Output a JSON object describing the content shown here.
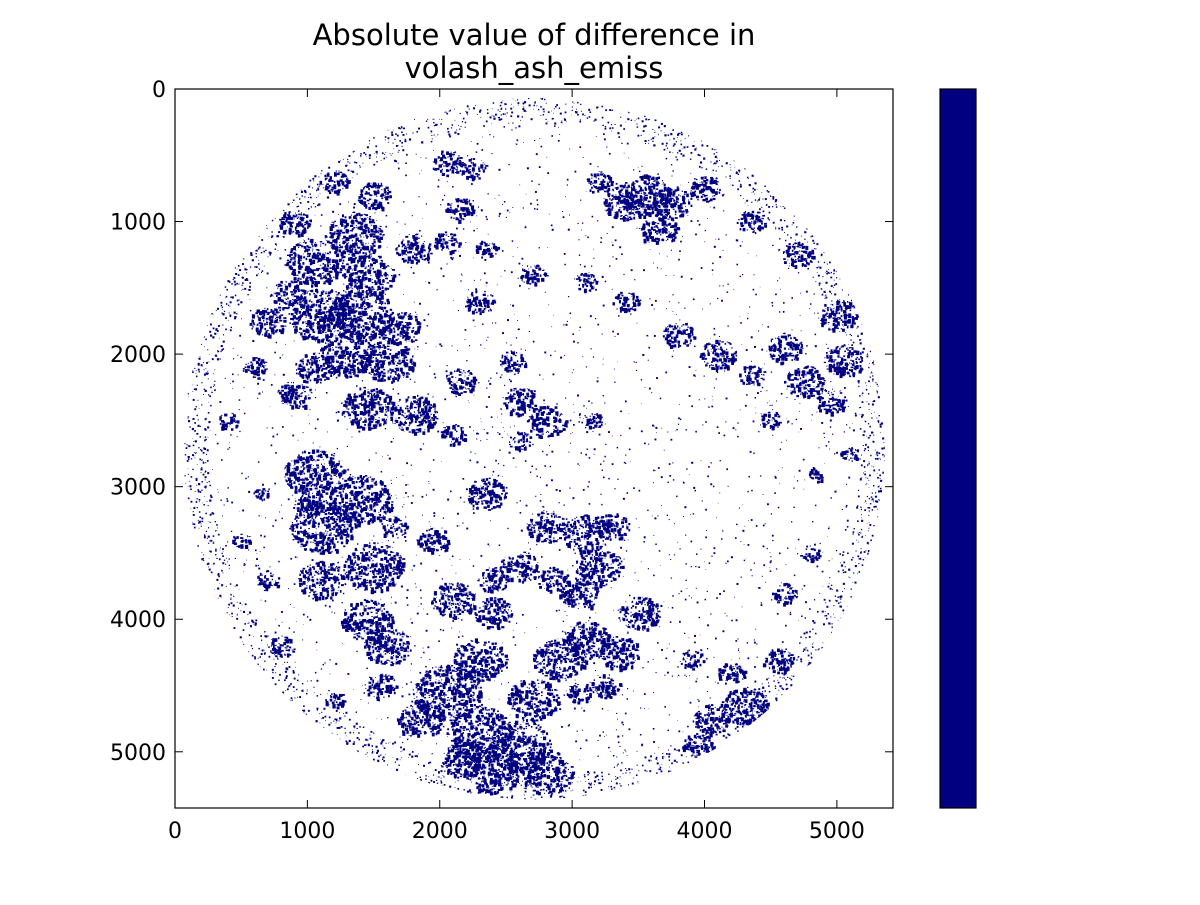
{
  "chart_data": {
    "type": "heatmap",
    "title": "Absolute value of difference in\nvolash_ash_emiss",
    "xlabel": "",
    "ylabel": "",
    "xlim": [
      0,
      5424
    ],
    "ylim": [
      5424,
      0
    ],
    "x_ticks": [
      0,
      1000,
      2000,
      3000,
      4000,
      5000
    ],
    "y_ticks": [
      0,
      1000,
      2000,
      3000,
      4000,
      5000
    ],
    "grid": false,
    "colorbar": {
      "ticks": [],
      "color": "#000080"
    },
    "disk": {
      "center": [
        2712,
        2712
      ],
      "radius": 2650
    },
    "colors": {
      "fill": "#000080",
      "background": "#ffffff"
    },
    "clusters": [
      {
        "c": [
          1050,
          2900
        ],
        "r": 230
      },
      {
        "c": [
          1400,
          3100
        ],
        "r": 240
      },
      {
        "c": [
          1100,
          3300
        ],
        "r": 250
      },
      {
        "c": [
          1500,
          3600
        ],
        "r": 230
      },
      {
        "c": [
          1450,
          4000
        ],
        "r": 200
      },
      {
        "c": [
          1100,
          3700
        ],
        "r": 180
      },
      {
        "c": [
          1600,
          4200
        ],
        "r": 180
      },
      {
        "c": [
          1850,
          4750
        ],
        "r": 180
      },
      {
        "c": [
          2050,
          4550
        ],
        "r": 260
      },
      {
        "c": [
          2300,
          4850
        ],
        "r": 250
      },
      {
        "c": [
          2600,
          4950
        ],
        "r": 240
      },
      {
        "c": [
          2800,
          5150
        ],
        "r": 200
      },
      {
        "c": [
          2400,
          5150
        ],
        "r": 200
      },
      {
        "c": [
          2200,
          5050
        ],
        "r": 180
      },
      {
        "c": [
          2700,
          4600
        ],
        "r": 200
      },
      {
        "c": [
          2300,
          4300
        ],
        "r": 200
      },
      {
        "c": [
          2900,
          4300
        ],
        "r": 200
      },
      {
        "c": [
          3100,
          4150
        ],
        "r": 180
      },
      {
        "c": [
          3350,
          4250
        ],
        "r": 160
      },
      {
        "c": [
          3500,
          3950
        ],
        "r": 160
      },
      {
        "c": [
          3200,
          3600
        ],
        "r": 180
      },
      {
        "c": [
          3050,
          3800
        ],
        "r": 150
      },
      {
        "c": [
          2600,
          3600
        ],
        "r": 150
      },
      {
        "c": [
          2400,
          3700
        ],
        "r": 120
      },
      {
        "c": [
          2100,
          3850
        ],
        "r": 170
      },
      {
        "c": [
          2400,
          3950
        ],
        "r": 150
      },
      {
        "c": [
          4300,
          4650
        ],
        "r": 180
      },
      {
        "c": [
          4550,
          4300
        ],
        "r": 120
      },
      {
        "c": [
          4050,
          4750
        ],
        "r": 140
      },
      {
        "c": [
          3950,
          4950
        ],
        "r": 120
      },
      {
        "c": [
          4200,
          4400
        ],
        "r": 110
      },
      {
        "c": [
          4600,
          3800
        ],
        "r": 100
      },
      {
        "c": [
          4800,
          3500
        ],
        "r": 80
      },
      {
        "c": [
          3100,
          3350
        ],
        "r": 180
      },
      {
        "c": [
          2800,
          3300
        ],
        "r": 150
      },
      {
        "c": [
          3300,
          3300
        ],
        "r": 130
      },
      {
        "c": [
          1950,
          3400
        ],
        "r": 130
      },
      {
        "c": [
          1650,
          3300
        ],
        "r": 100
      },
      {
        "c": [
          2350,
          3050
        ],
        "r": 150
      },
      {
        "c": [
          1000,
          3150
        ],
        "r": 110
      },
      {
        "c": [
          2850,
          3700
        ],
        "r": 120
      },
      {
        "c": [
          1550,
          4500
        ],
        "r": 120
      },
      {
        "c": [
          1200,
          4600
        ],
        "r": 80
      },
      {
        "c": [
          800,
          4200
        ],
        "r": 100
      },
      {
        "c": [
          700,
          3700
        ],
        "r": 90
      },
      {
        "c": [
          1350,
          1100
        ],
        "r": 220
      },
      {
        "c": [
          1050,
          1300
        ],
        "r": 220
      },
      {
        "c": [
          1450,
          1400
        ],
        "r": 200
      },
      {
        "c": [
          1100,
          1700
        ],
        "r": 250
      },
      {
        "c": [
          1400,
          1700
        ],
        "r": 250
      },
      {
        "c": [
          1300,
          2000
        ],
        "r": 210
      },
      {
        "c": [
          1600,
          2050
        ],
        "r": 200
      },
      {
        "c": [
          1450,
          2400
        ],
        "r": 200
      },
      {
        "c": [
          1800,
          2450
        ],
        "r": 180
      },
      {
        "c": [
          1050,
          2100
        ],
        "r": 150
      },
      {
        "c": [
          900,
          2300
        ],
        "r": 130
      },
      {
        "c": [
          1700,
          1800
        ],
        "r": 160
      },
      {
        "c": [
          1800,
          1200
        ],
        "r": 140
      },
      {
        "c": [
          700,
          1750
        ],
        "r": 140
      },
      {
        "c": [
          850,
          1550
        ],
        "r": 140
      },
      {
        "c": [
          600,
          2100
        ],
        "r": 100
      },
      {
        "c": [
          1500,
          800
        ],
        "r": 130
      },
      {
        "c": [
          1200,
          700
        ],
        "r": 110
      },
      {
        "c": [
          900,
          1000
        ],
        "r": 120
      },
      {
        "c": [
          2050,
          550
        ],
        "r": 120
      },
      {
        "c": [
          2250,
          600
        ],
        "r": 100
      },
      {
        "c": [
          2150,
          900
        ],
        "r": 110
      },
      {
        "c": [
          2050,
          1150
        ],
        "r": 100
      },
      {
        "c": [
          2350,
          1200
        ],
        "r": 90
      },
      {
        "c": [
          3550,
          800
        ],
        "r": 200
      },
      {
        "c": [
          3400,
          850
        ],
        "r": 170
      },
      {
        "c": [
          3750,
          850
        ],
        "r": 150
      },
      {
        "c": [
          3650,
          1050
        ],
        "r": 150
      },
      {
        "c": [
          3200,
          700
        ],
        "r": 100
      },
      {
        "c": [
          4000,
          750
        ],
        "r": 120
      },
      {
        "c": [
          4350,
          1000
        ],
        "r": 110
      },
      {
        "c": [
          4700,
          1250
        ],
        "r": 120
      },
      {
        "c": [
          5000,
          1700
        ],
        "r": 150
      },
      {
        "c": [
          5050,
          2050
        ],
        "r": 150
      },
      {
        "c": [
          4750,
          2200
        ],
        "r": 150
      },
      {
        "c": [
          4600,
          1950
        ],
        "r": 140
      },
      {
        "c": [
          4950,
          2350
        ],
        "r": 120
      },
      {
        "c": [
          4100,
          2000
        ],
        "r": 140
      },
      {
        "c": [
          3800,
          1850
        ],
        "r": 120
      },
      {
        "c": [
          4350,
          2150
        ],
        "r": 100
      },
      {
        "c": [
          4500,
          2500
        ],
        "r": 90
      },
      {
        "c": [
          2800,
          2500
        ],
        "r": 150
      },
      {
        "c": [
          2600,
          2350
        ],
        "r": 130
      },
      {
        "c": [
          2550,
          2050
        ],
        "r": 100
      },
      {
        "c": [
          2150,
          2200
        ],
        "r": 120
      },
      {
        "c": [
          2300,
          1600
        ],
        "r": 110
      },
      {
        "c": [
          2700,
          1400
        ],
        "r": 100
      },
      {
        "c": [
          3100,
          1450
        ],
        "r": 90
      },
      {
        "c": [
          3400,
          1600
        ],
        "r": 100
      },
      {
        "c": [
          3150,
          2500
        ],
        "r": 80
      },
      {
        "c": [
          2100,
          2600
        ],
        "r": 100
      },
      {
        "c": [
          5100,
          2750
        ],
        "r": 80
      },
      {
        "c": [
          4850,
          2900
        ],
        "r": 70
      },
      {
        "c": [
          400,
          2500
        ],
        "r": 80
      },
      {
        "c": [
          500,
          3400
        ],
        "r": 70
      },
      {
        "c": [
          650,
          3050
        ],
        "r": 60
      },
      {
        "c": [
          3900,
          4300
        ],
        "r": 90
      },
      {
        "c": [
          3250,
          4500
        ],
        "r": 110
      },
      {
        "c": [
          3050,
          4550
        ],
        "r": 100
      },
      {
        "c": [
          2600,
          2650
        ],
        "r": 90
      }
    ]
  }
}
